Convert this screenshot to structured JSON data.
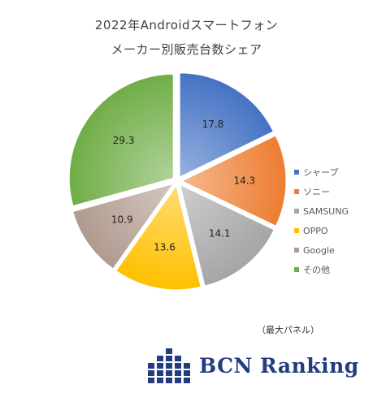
{
  "chart_data": {
    "type": "pie",
    "title_line1": "2022年Androidスマートフォン",
    "title_line2": "メーカー別販売台数シェア",
    "categories": [
      "シャープ",
      "ソニー",
      "SAMSUNG",
      "OPPO",
      "Google",
      "その他"
    ],
    "values": [
      17.8,
      14.3,
      14.1,
      13.6,
      10.9,
      29.3
    ],
    "colors": [
      "#4472c4",
      "#ed7d31",
      "#a5a5a5",
      "#ffc000",
      "#b09a8e",
      "#70ad47"
    ],
    "legend_position": "right",
    "exploded": true
  },
  "caption": "（最大パネル）",
  "logo": {
    "text": "BCN Ranking",
    "color": "#233c80"
  }
}
